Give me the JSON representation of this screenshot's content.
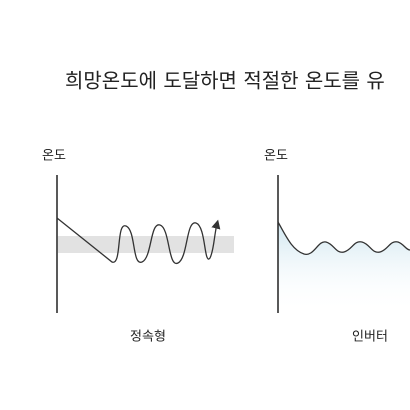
{
  "title": "희망온도에 도달하면 적절한 온도를 유",
  "panels": [
    {
      "axis_label": "온도",
      "caption": "정속형"
    },
    {
      "axis_label": "온도",
      "caption": "인버터"
    }
  ]
}
